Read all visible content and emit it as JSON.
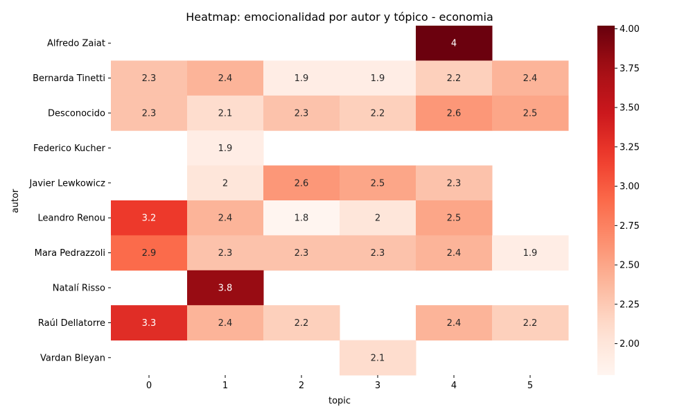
{
  "chart_data": {
    "type": "heatmap",
    "title": "Heatmap: emocionalidad por autor y tópico - economia",
    "xlabel": "topic",
    "ylabel": "autor",
    "x_categories": [
      "0",
      "1",
      "2",
      "3",
      "4",
      "5"
    ],
    "y_categories": [
      "Alfredo Zaiat",
      "Bernarda Tinetti",
      "Desconocido",
      "Federico Kucher",
      "Javier Lewkowicz",
      "Leandro Renou",
      "Mara Pedrazzoli",
      "Natalí Risso",
      "Raúl Dellatorre",
      "Vardan Bleyan"
    ],
    "values": [
      [
        null,
        null,
        null,
        null,
        4,
        null
      ],
      [
        2.3,
        2.4,
        1.9,
        1.9,
        2.2,
        2.4
      ],
      [
        2.3,
        2.1,
        2.3,
        2.2,
        2.6,
        2.5
      ],
      [
        null,
        1.9,
        null,
        null,
        null,
        null
      ],
      [
        null,
        2,
        2.6,
        2.5,
        2.3,
        null
      ],
      [
        3.2,
        2.4,
        1.8,
        2,
        2.5,
        null
      ],
      [
        2.9,
        2.3,
        2.3,
        2.3,
        2.4,
        1.9
      ],
      [
        null,
        3.8,
        null,
        null,
        null,
        null
      ],
      [
        3.3,
        2.4,
        2.2,
        null,
        2.4,
        2.2
      ],
      [
        null,
        null,
        null,
        2.1,
        null,
        null
      ]
    ],
    "colormap": "Reds",
    "vmin": 1.8,
    "vmax": 4.02,
    "colorbar_ticks": [
      "2.00",
      "2.25",
      "2.50",
      "2.75",
      "3.00",
      "3.25",
      "3.50",
      "3.75",
      "4.00"
    ],
    "grid": false,
    "legend": "colorbar-right"
  }
}
